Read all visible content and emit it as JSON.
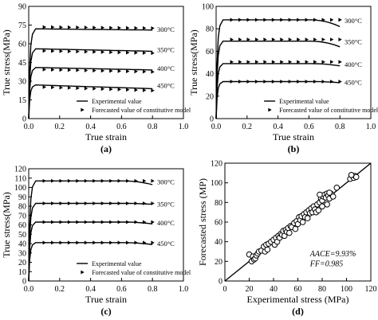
{
  "chart_data": [
    {
      "id": "a",
      "panel_label": "(a)",
      "type": "line",
      "xlabel": "True strain",
      "ylabel": "True stress(MPa)",
      "xlim": [
        0,
        1.0
      ],
      "ylim": [
        0,
        90
      ],
      "xticks": [
        "0.0",
        "0.2",
        "0.4",
        "0.6",
        "0.8",
        "1.0"
      ],
      "yticks": [
        "0",
        "15",
        "30",
        "45",
        "60",
        "75",
        "90"
      ],
      "legend": [
        "Experimental value",
        "Forecasted value of constitutive model"
      ],
      "legend_position": "bottom-right",
      "series": [
        {
          "name": "300°C",
          "plateau": 72,
          "end": 71,
          "marker_offset": 1.5
        },
        {
          "name": "350°C",
          "plateau": 56,
          "end": 54,
          "marker_offset": -1.5
        },
        {
          "name": "400°C",
          "plateau": 41,
          "end": 39,
          "marker_offset": -1.5
        },
        {
          "name": "450°C",
          "plateau": 27,
          "end": 24,
          "marker_offset": -1.5
        }
      ]
    },
    {
      "id": "b",
      "panel_label": "(b)",
      "type": "line",
      "xlabel": "True strain",
      "ylabel": "True stress(MPa)",
      "xlim": [
        0,
        1.0
      ],
      "ylim": [
        0,
        100
      ],
      "xticks": [
        "0.0",
        "0.2",
        "0.4",
        "0.6",
        "0.8",
        "1.0"
      ],
      "yticks": [
        "0",
        "20",
        "40",
        "60",
        "80",
        "100"
      ],
      "legend": [
        "Experimental value",
        "Forecasted value of constitutive model"
      ],
      "legend_position": "bottom-right",
      "series": [
        {
          "name": "300°C",
          "plateau": 88,
          "end": 82,
          "marker_offset": 0
        },
        {
          "name": "350°C",
          "plateau": 69,
          "end": 64,
          "marker_offset": 1.5
        },
        {
          "name": "400°C",
          "plateau": 49,
          "end": 47,
          "marker_offset": 1.5
        },
        {
          "name": "450°C",
          "plateau": 33,
          "end": 32,
          "marker_offset": 0
        }
      ]
    },
    {
      "id": "c",
      "panel_label": "(c)",
      "type": "line",
      "xlabel": "True strain",
      "ylabel": "True stress(MPa)",
      "xlim": [
        0,
        1.0
      ],
      "ylim": [
        0,
        120
      ],
      "xticks": [
        "0.0",
        "0.2",
        "0.4",
        "0.6",
        "0.8",
        "1.0"
      ],
      "yticks": [
        "0",
        "10",
        "20",
        "30",
        "40",
        "50",
        "60",
        "70",
        "80",
        "90",
        "100",
        "110",
        "120"
      ],
      "legend": [
        "Experimental value",
        "Forecasted value of constitutive model"
      ],
      "legend_position": "bottom-right",
      "series": [
        {
          "name": "300°C",
          "plateau": 107,
          "end": 103,
          "marker_offset": 0
        },
        {
          "name": "350°C",
          "plateau": 83,
          "end": 82,
          "marker_offset": 0
        },
        {
          "name": "400°C",
          "plateau": 63,
          "end": 61,
          "marker_offset": 0
        },
        {
          "name": "450°C",
          "plateau": 41,
          "end": 39,
          "marker_offset": 0
        }
      ]
    },
    {
      "id": "d",
      "panel_label": "(d)",
      "type": "scatter",
      "xlabel": "Experimental stress (MPa)",
      "ylabel": "Forecasted stress (MP)",
      "xlim": [
        0,
        120
      ],
      "ylim": [
        0,
        120
      ],
      "xticks": [
        "0",
        "20",
        "40",
        "60",
        "80",
        "100",
        "120"
      ],
      "yticks": [
        "0",
        "20",
        "40",
        "60",
        "80",
        "100",
        "120"
      ],
      "annotations": [
        "AACE=9.93%",
        "FF=0.985"
      ],
      "reference_line": "y = x",
      "points": [
        [
          20,
          27
        ],
        [
          22,
          20
        ],
        [
          23,
          25
        ],
        [
          24,
          22
        ],
        [
          25,
          23
        ],
        [
          26,
          26
        ],
        [
          27,
          28
        ],
        [
          28,
          30
        ],
        [
          30,
          31
        ],
        [
          32,
          35
        ],
        [
          33,
          30
        ],
        [
          34,
          37
        ],
        [
          35,
          32
        ],
        [
          36,
          38
        ],
        [
          38,
          40
        ],
        [
          40,
          42
        ],
        [
          41,
          37
        ],
        [
          42,
          44
        ],
        [
          43,
          40
        ],
        [
          44,
          46
        ],
        [
          45,
          44
        ],
        [
          46,
          48
        ],
        [
          47,
          47
        ],
        [
          48,
          51
        ],
        [
          49,
          46
        ],
        [
          50,
          52
        ],
        [
          51,
          50
        ],
        [
          52,
          54
        ],
        [
          53,
          49
        ],
        [
          54,
          56
        ],
        [
          55,
          55
        ],
        [
          57,
          59
        ],
        [
          58,
          53
        ],
        [
          59,
          61
        ],
        [
          60,
          58
        ],
        [
          61,
          65
        ],
        [
          62,
          62
        ],
        [
          63,
          66
        ],
        [
          64,
          60
        ],
        [
          65,
          68
        ],
        [
          66,
          65
        ],
        [
          67,
          70
        ],
        [
          68,
          64
        ],
        [
          69,
          72
        ],
        [
          70,
          69
        ],
        [
          71,
          74
        ],
        [
          72,
          70
        ],
        [
          73,
          76
        ],
        [
          74,
          73
        ],
        [
          75,
          70
        ],
        [
          76,
          78
        ],
        [
          77,
          72
        ],
        [
          78,
          80
        ],
        [
          79,
          84
        ],
        [
          80,
          82
        ],
        [
          81,
          86
        ],
        [
          82,
          88
        ],
        [
          83,
          85
        ],
        [
          84,
          89
        ],
        [
          85,
          87
        ],
        [
          86,
          84
        ],
        [
          87,
          89
        ],
        [
          88,
          88
        ],
        [
          89,
          86
        ],
        [
          86,
          90
        ],
        [
          84,
          78
        ],
        [
          80,
          76
        ],
        [
          78,
          88
        ],
        [
          92,
          95
        ],
        [
          103,
          104
        ],
        [
          105,
          107
        ],
        [
          106,
          105
        ],
        [
          107,
          107
        ],
        [
          108,
          106
        ],
        [
          104,
          108
        ]
      ]
    }
  ]
}
